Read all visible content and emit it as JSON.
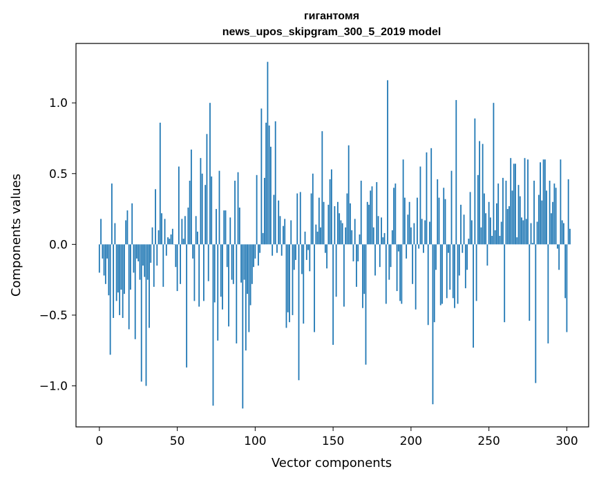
{
  "chart_data": {
    "type": "bar",
    "title": "гигантомя",
    "subtitle": "news_upos_skipgram_300_5_2019 model",
    "xlabel": "Vector components",
    "ylabel": "Components values",
    "xlim": [
      -15,
      314
    ],
    "ylim": [
      -1.29,
      1.42
    ],
    "x_ticks": [
      0,
      50,
      100,
      150,
      200,
      250,
      300
    ],
    "x_tick_labels": [
      "0",
      "50",
      "100",
      "150",
      "200",
      "250",
      "300"
    ],
    "y_ticks": [
      1.0,
      0.5,
      0.0,
      -0.5,
      -1.0
    ],
    "y_tick_labels": [
      "1.0",
      "0.5",
      "0.0",
      "−0.5",
      "−1.0"
    ],
    "grid": false,
    "bar_color": "#1f77b4",
    "values": [
      -0.2,
      0.18,
      -0.1,
      -0.22,
      -0.28,
      -0.1,
      -0.36,
      -0.78,
      0.43,
      -0.52,
      0.15,
      -0.4,
      -0.34,
      -0.5,
      -0.32,
      -0.52,
      -0.35,
      0.17,
      0.24,
      -0.6,
      -0.32,
      0.29,
      -0.2,
      -0.67,
      -0.1,
      -0.12,
      -0.25,
      -0.97,
      -0.15,
      -0.23,
      -1.0,
      -0.25,
      -0.59,
      -0.13,
      0.12,
      -0.3,
      0.39,
      -0.15,
      0.1,
      0.86,
      0.22,
      -0.3,
      0.18,
      -0.08,
      0.05,
      0.04,
      0.07,
      0.11,
      0.0,
      -0.16,
      -0.33,
      0.55,
      -0.28,
      0.18,
      0.04,
      0.2,
      -0.87,
      0.26,
      0.45,
      0.67,
      -0.1,
      -0.4,
      0.2,
      0.09,
      -0.44,
      0.61,
      0.5,
      -0.4,
      0.42,
      0.78,
      -0.26,
      1.0,
      0.48,
      -1.14,
      -0.41,
      0.25,
      -0.68,
      0.52,
      -0.37,
      -0.46,
      0.24,
      0.24,
      -0.16,
      -0.58,
      0.19,
      -0.25,
      -0.28,
      0.45,
      -0.7,
      0.51,
      0.26,
      -0.27,
      -1.16,
      -0.25,
      -0.75,
      -0.35,
      -0.62,
      -0.43,
      -0.28,
      -0.16,
      -0.1,
      0.49,
      -0.15,
      -0.06,
      0.96,
      0.08,
      0.47,
      0.86,
      1.29,
      0.84,
      0.69,
      -0.08,
      0.35,
      0.87,
      -0.06,
      0.31,
      0.2,
      -0.08,
      0.13,
      0.18,
      -0.59,
      -0.48,
      -0.55,
      0.17,
      -0.5,
      -0.18,
      -0.11,
      0.36,
      -0.96,
      0.37,
      -0.21,
      -0.56,
      0.09,
      -0.11,
      -0.04,
      -0.19,
      0.36,
      0.5,
      -0.62,
      0.14,
      0.09,
      0.33,
      0.12,
      0.8,
      0.3,
      -0.06,
      -0.17,
      0.28,
      0.46,
      0.53,
      -0.71,
      0.27,
      -0.37,
      0.3,
      0.22,
      0.17,
      0.15,
      -0.44,
      0.12,
      0.36,
      0.7,
      0.29,
      0.1,
      -0.12,
      0.18,
      -0.3,
      -0.12,
      0.07,
      0.45,
      -0.45,
      -0.35,
      -0.85,
      0.3,
      0.28,
      0.38,
      0.41,
      0.12,
      -0.22,
      0.44,
      0.2,
      -0.16,
      0.19,
      0.05,
      0.08,
      -0.42,
      1.16,
      -0.25,
      -0.16,
      0.1,
      0.4,
      0.43,
      -0.33,
      -0.05,
      -0.4,
      -0.42,
      0.6,
      0.33,
      -0.1,
      0.21,
      0.3,
      0.12,
      -0.28,
      0.15,
      -0.46,
      0.33,
      -0.03,
      0.55,
      0.18,
      -0.06,
      0.17,
      0.65,
      -0.57,
      0.16,
      0.68,
      -1.13,
      -0.55,
      -0.18,
      0.46,
      0.33,
      -0.43,
      -0.42,
      0.4,
      0.32,
      -0.38,
      -0.06,
      -0.32,
      0.52,
      -0.38,
      -0.45,
      1.02,
      -0.42,
      -0.22,
      0.28,
      -0.06,
      0.21,
      -0.31,
      -0.18,
      0.04,
      0.37,
      0.17,
      -0.73,
      0.89,
      -0.4,
      0.49,
      0.73,
      0.12,
      0.71,
      0.36,
      0.22,
      -0.15,
      0.3,
      0.19,
      0.06,
      1.0,
      0.1,
      0.29,
      0.43,
      0.06,
      0.16,
      0.47,
      -0.55,
      0.45,
      0.25,
      0.27,
      0.61,
      0.38,
      0.57,
      0.57,
      0.05,
      0.42,
      0.34,
      0.19,
      0.17,
      0.61,
      0.18,
      0.6,
      -0.54,
      0.15,
      0.01,
      0.45,
      -0.98,
      0.16,
      0.35,
      0.58,
      0.31,
      0.6,
      0.6,
      0.38,
      -0.7,
      0.45,
      0.22,
      0.3,
      0.43,
      0.4,
      -0.03,
      -0.18,
      0.6,
      0.17,
      0.15,
      -0.38,
      -0.62,
      0.46,
      0.11
    ]
  }
}
